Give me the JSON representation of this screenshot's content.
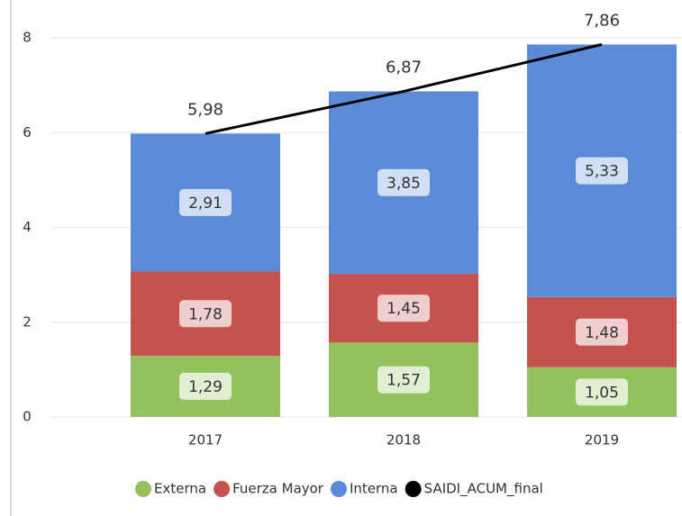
{
  "chart_data": {
    "type": "bar",
    "stacked": true,
    "categories": [
      "2017",
      "2018",
      "2019"
    ],
    "ylim": [
      0,
      8
    ],
    "yticks": [
      0,
      2,
      4,
      6,
      8
    ],
    "grid": true,
    "legend": "bottom",
    "series": [
      {
        "name": "Externa",
        "color": "#92c15d",
        "values": [
          1.29,
          1.57,
          1.05
        ],
        "value_labels": [
          "1,29",
          "1,57",
          "1,05"
        ]
      },
      {
        "name": "Fuerza Mayor",
        "color": "#c5524c",
        "values": [
          1.78,
          1.45,
          1.48
        ],
        "value_labels": [
          "1,78",
          "1,45",
          "1,48"
        ]
      },
      {
        "name": "Interna",
        "color": "#5b8bd6",
        "values": [
          2.91,
          3.85,
          5.33
        ],
        "value_labels": [
          "2,91",
          "3,85",
          "5,33"
        ]
      },
      {
        "name": "SAIDI_ACUM_final",
        "color": "#000000",
        "type": "line",
        "values": [
          5.98,
          6.87,
          7.86
        ],
        "value_labels": [
          "5,98",
          "6,87",
          "7,86"
        ]
      }
    ]
  }
}
